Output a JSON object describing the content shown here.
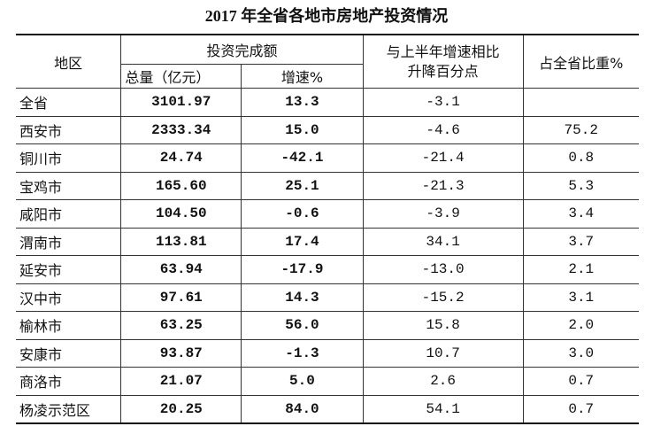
{
  "title": "2017 年全省各地市房地产投资情况",
  "table": {
    "headers": {
      "region": "地区",
      "investment": "投资完成额",
      "total": "总量（亿元）",
      "growth": "增速%",
      "change": [
        "与上半年增速相比",
        "升降百分点"
      ],
      "share": "占全省比重%"
    },
    "rows": [
      [
        "全省",
        "3101.97",
        "13.3",
        "-3.1",
        null
      ],
      [
        "西安市",
        "2333.34",
        "15.0",
        "-4.6",
        "75.2"
      ],
      [
        "铜川市",
        "24.74",
        "-42.1",
        "-21.4",
        "0.8"
      ],
      [
        "宝鸡市",
        "165.60",
        "25.1",
        "-21.3",
        "5.3"
      ],
      [
        "咸阳市",
        "104.50",
        "-0.6",
        "-3.9",
        "3.4"
      ],
      [
        "渭南市",
        "113.81",
        "17.4",
        "34.1",
        "3.7"
      ],
      [
        "延安市",
        "63.94",
        "-17.9",
        "-13.0",
        "2.1"
      ],
      [
        "汉中市",
        "97.61",
        "14.3",
        "-15.2",
        "3.1"
      ],
      [
        "榆林市",
        "63.25",
        "56.0",
        "15.8",
        "2.0"
      ],
      [
        "安康市",
        "93.87",
        "-1.3",
        "10.7",
        "3.0"
      ],
      [
        "商洛市",
        "21.07",
        "5.0",
        "2.6",
        "0.7"
      ],
      [
        "杨凌示范区",
        "20.25",
        "84.0",
        "54.1",
        "0.7"
      ]
    ]
  }
}
